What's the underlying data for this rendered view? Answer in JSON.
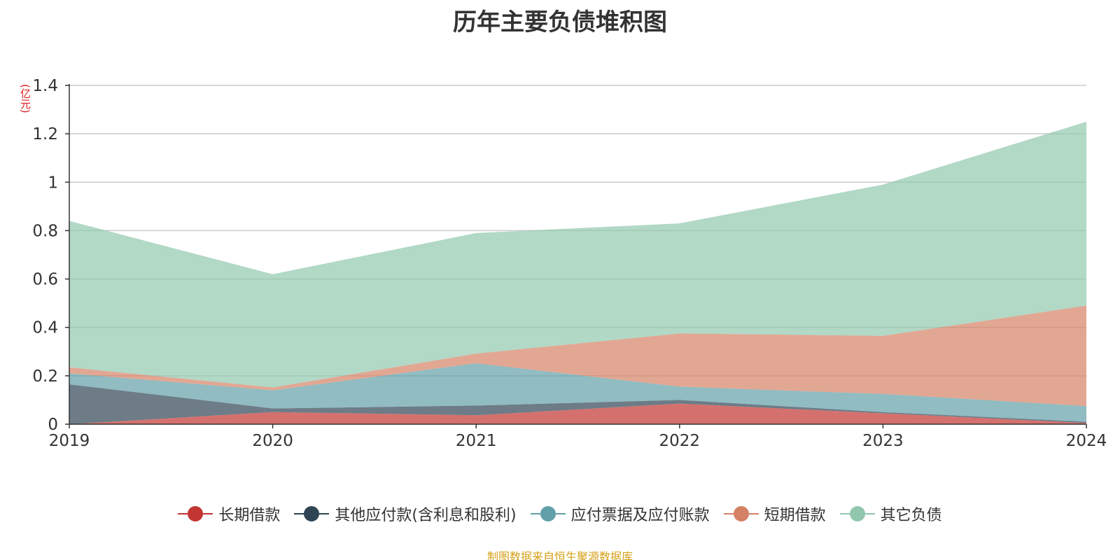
{
  "chart_data": {
    "type": "area",
    "title": "历年主要负债堆积图",
    "unit_label": "(亿元)",
    "x": [
      "2019",
      "2020",
      "2021",
      "2022",
      "2023",
      "2024"
    ],
    "ylim": [
      0,
      1.4
    ],
    "yticks": [
      "0",
      "0.2",
      "0.4",
      "0.6",
      "0.8",
      "1",
      "1.2",
      "1.4"
    ],
    "grid": true,
    "stacked": true,
    "legend_position": "bottom",
    "series": [
      {
        "name": "长期借款",
        "color": "#c23531",
        "values": [
          0.0,
          0.05,
          0.037,
          0.085,
          0.045,
          0.005
        ]
      },
      {
        "name": "其他应付款(含利息和股利)",
        "color": "#2f4554",
        "values": [
          0.165,
          0.015,
          0.04,
          0.015,
          0.005,
          0.005
        ]
      },
      {
        "name": "应付票据及应付账款",
        "color": "#61a0a8",
        "values": [
          0.045,
          0.075,
          0.175,
          0.055,
          0.075,
          0.065
        ]
      },
      {
        "name": "短期借款",
        "color": "#d48265",
        "values": [
          0.025,
          0.012,
          0.04,
          0.22,
          0.24,
          0.415
        ]
      },
      {
        "name": "其它负债",
        "color": "#91c7ae",
        "values": [
          0.605,
          0.468,
          0.498,
          0.455,
          0.625,
          0.76
        ]
      }
    ],
    "source": "制图数据来自恒生聚源数据库"
  }
}
